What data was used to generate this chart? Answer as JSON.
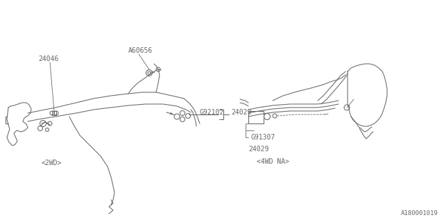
{
  "bg_color": "#ffffff",
  "line_color": "#666666",
  "text_color": "#666666",
  "fig_width": 6.4,
  "fig_height": 3.2,
  "dpi": 100,
  "labels": {
    "2WD": "<2WD>",
    "4WD": "<4WD NA>",
    "24046": "24046",
    "A60656": "A60656",
    "G92102": "G92102",
    "24029_left": "24029",
    "G91307": "G91307",
    "24029_right": "24029",
    "footer": "A180001019"
  },
  "font_size": 7.0,
  "font_family": "monospace"
}
